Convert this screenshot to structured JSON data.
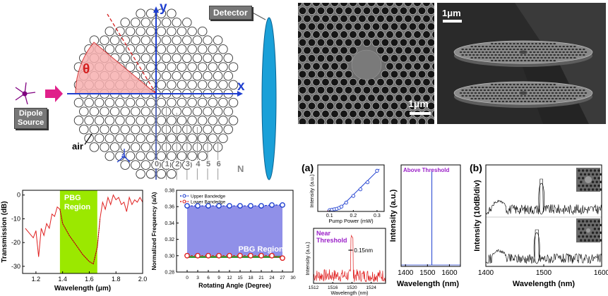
{
  "diagram": {
    "axis_y": "y",
    "axis_x": "x",
    "theta": "θ",
    "detector": "Detector",
    "dipole_source_line1": "Dipole",
    "dipole_source_line2": "Source",
    "air": "air",
    "a_label": "a",
    "ring_label": "N",
    "ring_numbers": [
      "0",
      "1",
      "2",
      "3",
      "4",
      "5",
      "6"
    ]
  },
  "sem": {
    "scale_top": "1μm",
    "scale_bottom": "1μm"
  },
  "panel_labels": {
    "a": "(a)",
    "b": "(b)"
  },
  "colors": {
    "accent_blue": "#1f3fd0",
    "pbg_green": "#9be800",
    "detector_blue": "#1aa0d8",
    "theta_red": "#d42020",
    "arrow_magenta": "#e0208a",
    "band_purple": "#9090e8"
  },
  "chart_data": [
    {
      "id": "transmission",
      "type": "line",
      "title": "",
      "xlabel": "Wavelength (μm)",
      "ylabel": "Transmission (dB)",
      "xlim": [
        1.1,
        2.0
      ],
      "ylim": [
        -33,
        2
      ],
      "xticks": [
        "1.2",
        "1.4",
        "1.6",
        "1.8",
        "2.0"
      ],
      "yticks": [
        "0",
        "-10",
        "-20",
        "-30"
      ],
      "region_label": "PBG\nRegion",
      "region_x": [
        1.38,
        1.66
      ],
      "x": [
        1.12,
        1.15,
        1.18,
        1.2,
        1.22,
        1.24,
        1.26,
        1.28,
        1.3,
        1.32,
        1.34,
        1.36,
        1.38,
        1.4,
        1.45,
        1.5,
        1.55,
        1.6,
        1.63,
        1.66,
        1.68,
        1.7,
        1.72,
        1.74,
        1.76,
        1.78,
        1.8,
        1.82,
        1.84,
        1.86,
        1.88,
        1.9,
        1.92,
        1.94,
        1.96,
        1.98,
        2.0
      ],
      "y": [
        -14,
        -16,
        -18,
        -15,
        -26,
        -14,
        -17,
        -12,
        -14,
        -8,
        -9,
        -5,
        -6,
        -12,
        -17,
        -21,
        -25,
        -28,
        -29,
        -22,
        -10,
        -3,
        -6,
        -1,
        -4,
        0,
        -2,
        -1,
        -4,
        -3,
        -7,
        -1,
        -4,
        -2,
        -3,
        -1,
        -3
      ]
    },
    {
      "id": "bandedge",
      "type": "line",
      "title": "",
      "xlabel": "Rotating Angle (Degree)",
      "ylabel": "Normalized Frequency (a/λ)",
      "xlim": [
        -3,
        30
      ],
      "ylim": [
        0.28,
        0.38
      ],
      "xticks": [
        "0",
        "3",
        "6",
        "9",
        "12",
        "15",
        "18",
        "21",
        "24",
        "27",
        "30"
      ],
      "yticks": [
        "0.28",
        "0.30",
        "0.32",
        "0.34",
        "0.36",
        "0.38"
      ],
      "legend": [
        "Upper Bandedge",
        "Lower Bandedge"
      ],
      "legend_position": "top-left",
      "region_label": "PBG Region",
      "series": [
        {
          "name": "Upper Bandedge",
          "x": [
            0,
            3,
            6,
            9,
            12,
            15,
            18,
            21,
            24,
            27
          ],
          "values": [
            0.361,
            0.361,
            0.361,
            0.361,
            0.361,
            0.361,
            0.361,
            0.361,
            0.362,
            0.362
          ]
        },
        {
          "name": "Lower Bandedge",
          "x": [
            0,
            3,
            6,
            9,
            12,
            15,
            18,
            21,
            24,
            27
          ],
          "values": [
            0.3,
            0.3,
            0.3,
            0.3,
            0.3,
            0.3,
            0.3,
            0.3,
            0.3,
            0.297
          ]
        }
      ]
    },
    {
      "id": "ll_inset",
      "type": "scatter",
      "xlabel": "Pump Power (mW)",
      "ylabel": "Intensity (a.u.)",
      "xlim": [
        0.05,
        0.33
      ],
      "xticks": [
        "0.1",
        "0.2",
        "0.3"
      ],
      "x": [
        0.1,
        0.11,
        0.12,
        0.13,
        0.14,
        0.15,
        0.17,
        0.2,
        0.23,
        0.26,
        0.3
      ],
      "values": [
        0.03,
        0.04,
        0.05,
        0.06,
        0.08,
        0.11,
        0.2,
        0.35,
        0.5,
        0.66,
        0.92
      ]
    },
    {
      "id": "near_threshold",
      "type": "line",
      "xlabel": "Wavelength (nm)",
      "ylabel": "Intensity (a.u.)",
      "label": "Near\nThreshold",
      "linewidth_label": "0.15nm",
      "xlim": [
        1512,
        1527
      ],
      "xticks": [
        "1512",
        "1516",
        "1520",
        "1524"
      ],
      "peak_x": 1520
    },
    {
      "id": "above_threshold",
      "type": "line",
      "xlabel": "Wavelength (nm)",
      "ylabel": "Intensity (a.u.)",
      "label": "Above Threshold",
      "xlim": [
        1380,
        1650
      ],
      "xticks": [
        "1400",
        "1500",
        "1600"
      ],
      "peak_x": 1520
    },
    {
      "id": "spectra_b",
      "type": "line",
      "xlabel": "Wavelength (nm)",
      "ylabel": "Intensity (10dB/div)",
      "xlim": [
        1400,
        1600
      ],
      "xticks": [
        "1400",
        "1500",
        "1600"
      ],
      "peak_top": 1496,
      "peak_bottom": 1488
    }
  ]
}
